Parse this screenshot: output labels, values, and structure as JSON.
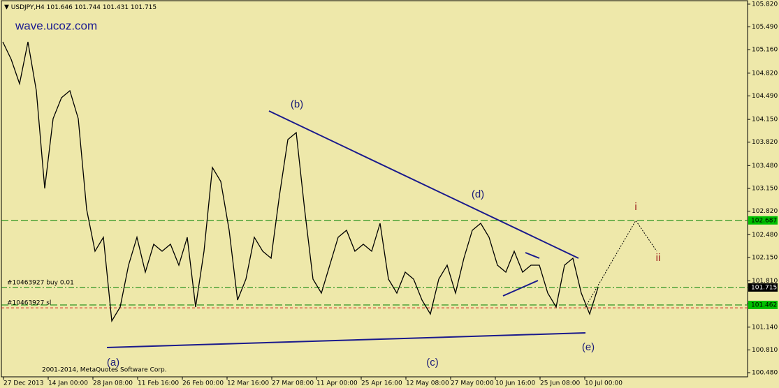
{
  "chart_data": {
    "type": "line",
    "symbol": "USDJPY,H4",
    "ohlc": [
      101.646,
      101.744,
      101.431,
      101.715
    ],
    "watermark": "wave.ucoz.com",
    "copyright": "2001-2014, MetaQuotes Software Corp.",
    "x_labels": [
      "27 Dec 2013",
      "14 Jan 00:00",
      "28 Jan 08:00",
      "11 Feb 16:00",
      "26 Feb 00:00",
      "12 Mar 16:00",
      "27 Mar 08:00",
      "11 Apr 00:00",
      "25 Apr 16:00",
      "12 May 08:00",
      "27 May 00:00",
      "10 Jun 16:00",
      "25 Jun 08:00",
      "10 Jul 00:00"
    ],
    "series": [
      {
        "name": "USDJPY,H4",
        "color": "#000000",
        "values": [
          105.273,
          105.021,
          104.667,
          105.273,
          104.566,
          103.15,
          104.161,
          104.464,
          104.566,
          104.161,
          102.847,
          102.24,
          102.442,
          101.229,
          101.431,
          102.038,
          102.442,
          101.937,
          102.341,
          102.24,
          102.341,
          102.038,
          102.442,
          101.431,
          102.24,
          103.453,
          103.251,
          102.543,
          101.532,
          101.836,
          102.442,
          102.24,
          102.139,
          103.049,
          103.858,
          103.959,
          102.847,
          101.836,
          101.633,
          102.038,
          102.442,
          102.543,
          102.24,
          102.341,
          102.24,
          102.644,
          101.836,
          101.633,
          101.937,
          101.836,
          101.532,
          101.33,
          101.836,
          102.038,
          101.633,
          102.139,
          102.543,
          102.644,
          102.442,
          102.038,
          101.937,
          102.24,
          101.937,
          102.038,
          102.038,
          101.633,
          101.431,
          102.038,
          102.139,
          101.633,
          101.33,
          101.715
        ]
      }
    ],
    "ylim": [
      100.42,
      105.88
    ],
    "yticks": [
      105.82,
      105.49,
      105.16,
      104.82,
      104.49,
      104.15,
      103.82,
      103.48,
      103.15,
      102.82,
      102.48,
      102.15,
      101.81,
      101.48,
      101.14,
      100.81,
      100.48
    ],
    "ytick_labels": [
      "105.820",
      "105.490",
      "105.160",
      "104.820",
      "104.490",
      "104.150",
      "103.820",
      "103.480",
      "103.150",
      "102.820",
      "102.480",
      "102.150",
      "101.810",
      "101.480",
      "101.140",
      "100.810",
      "100.480"
    ],
    "level": {
      "value": 102.687,
      "color": "#008000"
    },
    "bid": {
      "value": 101.462,
      "color": "#008000"
    },
    "orders": [
      {
        "label": "#10463927 buy 0.01",
        "value": 101.715,
        "color": "#008000"
      },
      {
        "label": "#10463927 sl",
        "value": 101.42,
        "color": "#d22222"
      }
    ],
    "annotations": [
      "(a)",
      "(b)",
      "(c)",
      "(d)",
      "(e)",
      "i",
      "ii"
    ]
  }
}
